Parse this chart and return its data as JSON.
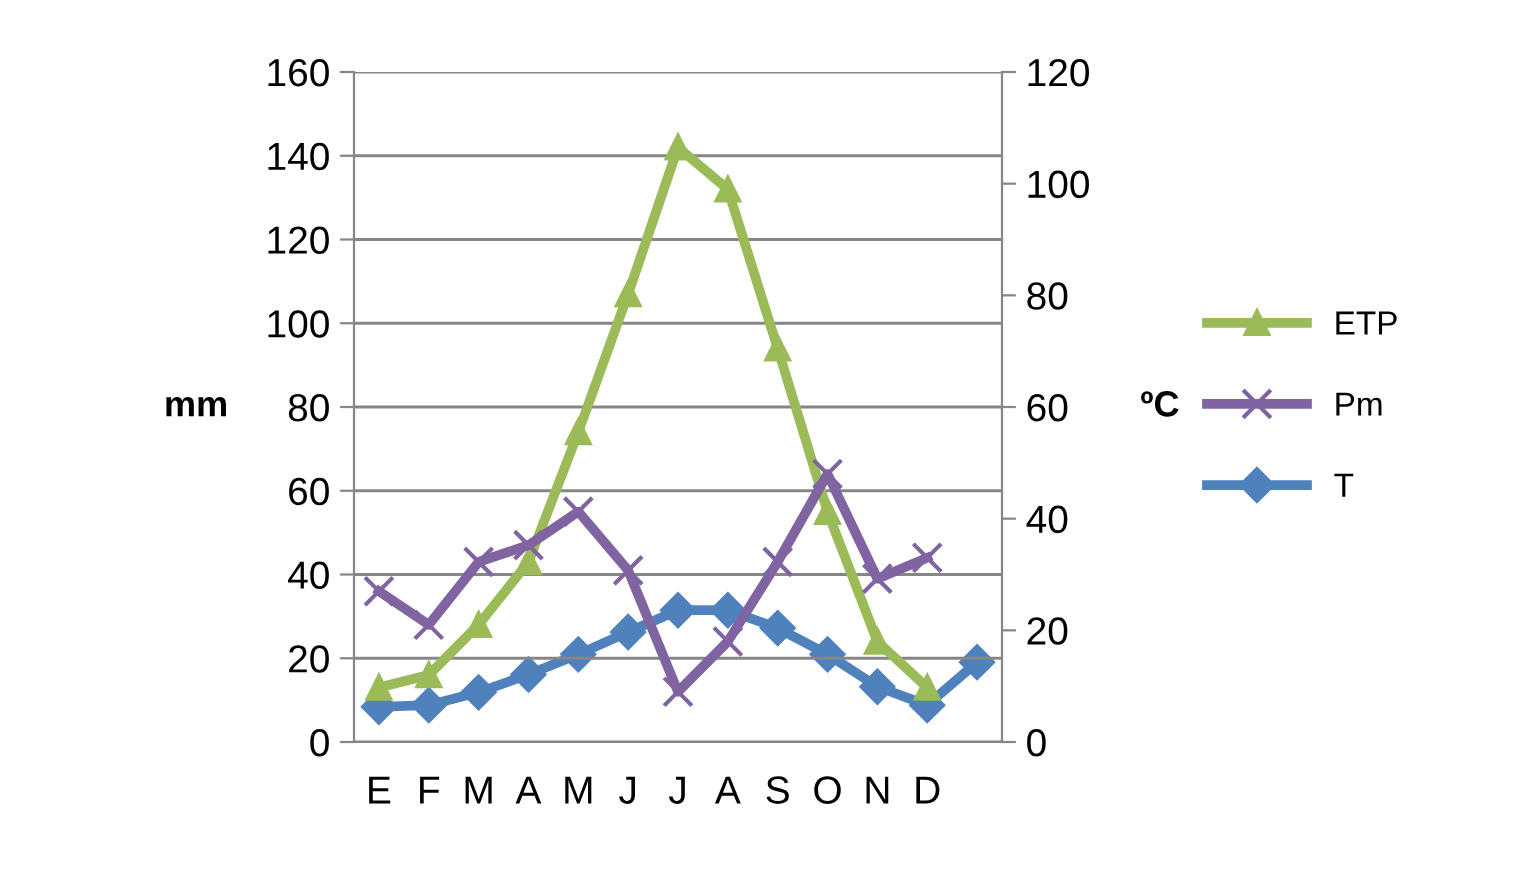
{
  "chart_data": {
    "type": "line",
    "categories": [
      "E",
      "F",
      "M",
      "A",
      "M",
      "J",
      "J",
      "A",
      "S",
      "O",
      "N",
      "D",
      null
    ],
    "ylabel": "mm",
    "y2label": "ºC",
    "ylim": [
      0,
      160
    ],
    "yticks": [
      0,
      20,
      40,
      60,
      80,
      100,
      120,
      140,
      160
    ],
    "y2lim": [
      0,
      120
    ],
    "y2ticks": [
      0,
      20,
      40,
      60,
      80,
      100,
      120
    ],
    "grid": "y",
    "legend": "right",
    "line_style": "solid",
    "series": [
      {
        "name": "ETP",
        "color": "#9bbb59",
        "marker": "triangle",
        "values": [
          13,
          16,
          28,
          43,
          74,
          107,
          142,
          132,
          94,
          55,
          24,
          13,
          null
        ]
      },
      {
        "name": "Pm",
        "color": "#8064a2",
        "marker": "cross",
        "values": [
          36,
          28,
          43,
          47,
          55,
          41,
          12,
          24,
          43,
          64,
          39,
          44,
          null
        ]
      },
      {
        "name": "T",
        "color": "#4f81bd",
        "marker": "diamond",
        "axis": "y2",
        "values": [
          6.3,
          6.6,
          8.9,
          12.1,
          15.7,
          19.7,
          23.6,
          23.6,
          20.4,
          15.7,
          9.9,
          6.6,
          14.3
        ]
      }
    ]
  }
}
